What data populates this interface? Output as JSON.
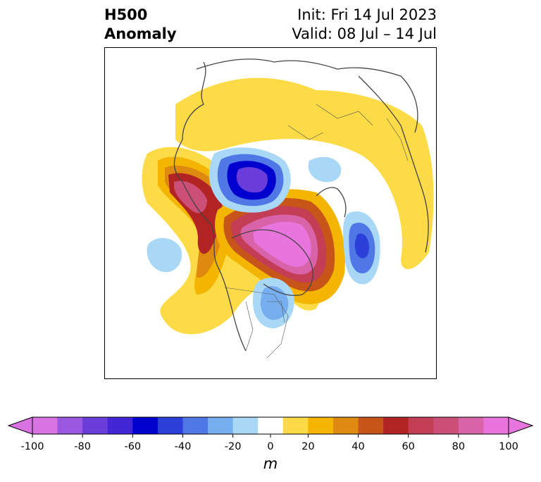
{
  "title": {
    "left_line1": "H500",
    "left_line2": "Anomaly",
    "right_line1": "Init: Fri 14 Jul 2023",
    "right_line2": "Valid: 08 Jul – 14 Jul"
  },
  "colorbar": {
    "unit": "m",
    "tick_labels": [
      "-100",
      "-80",
      "-60",
      "-40",
      "-20",
      "0",
      "20",
      "40",
      "60",
      "80",
      "100"
    ],
    "levels": [
      -100,
      -90,
      -80,
      -70,
      -60,
      -50,
      -40,
      -30,
      -20,
      -10,
      10,
      20,
      30,
      40,
      50,
      60,
      70,
      80,
      90,
      100
    ],
    "colors": [
      "#d973e3",
      "#9a57e0",
      "#6a3cd9",
      "#4226d6",
      "#0000cf",
      "#2a40d8",
      "#4f77e6",
      "#77aef0",
      "#a8d8f6",
      "#ffffff",
      "#fddb47",
      "#f3b500",
      "#de8a11",
      "#c75418",
      "#b22424",
      "#c33d55",
      "#cc4f78",
      "#d863a8",
      "#e874dd"
    ],
    "extend_under_color": "#d973e3",
    "extend_over_color": "#e874dd"
  },
  "map": {
    "projection": "polar stereographic",
    "features": [
      "Positive anomaly ridge over western North America and Alaska",
      "Strong positive anomaly over Greenland",
      "Negative anomaly over northern Siberia/Arctic",
      "Negative anomaly over the Great Lakes region",
      "Negative anomaly southwest of Iceland/UK",
      "Weak negative anomaly over the eastern Pacific"
    ]
  }
}
